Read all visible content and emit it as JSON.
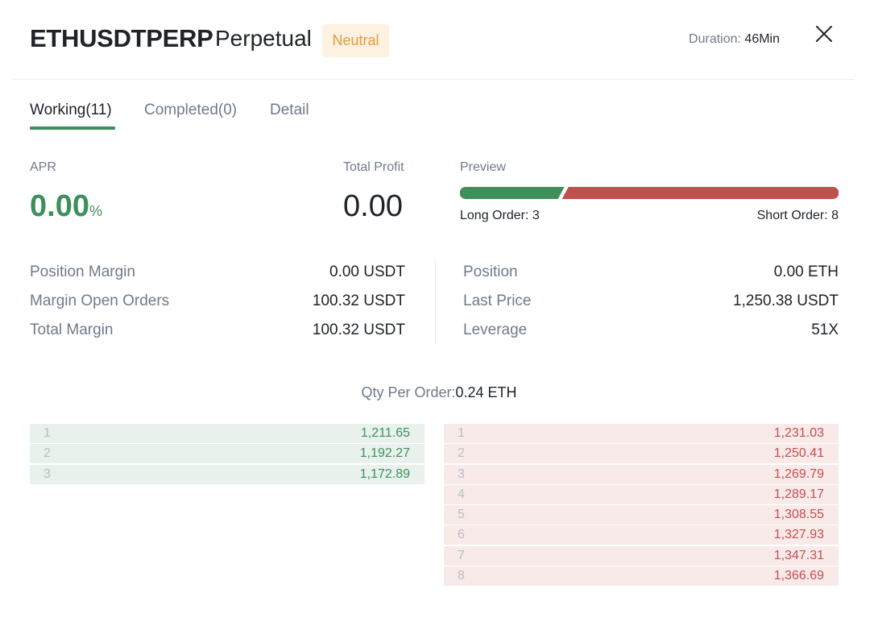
{
  "header": {
    "symbol": "ETHUSDTPERP",
    "type": "Perpetual",
    "mode": "Neutral",
    "duration_label": "Duration:",
    "duration_value": "46Min",
    "close_icon": "close-icon"
  },
  "tabs": [
    {
      "label": "Working(11)",
      "active": true
    },
    {
      "label": "Completed(0)",
      "active": false
    },
    {
      "label": "Detail",
      "active": false
    }
  ],
  "summary": {
    "apr_label": "APR",
    "apr_value": "0.00",
    "apr_unit": "%",
    "profit_label": "Total Profit",
    "profit_value": "0.00",
    "preview_label": "Preview",
    "long_label": "Long Order: 3",
    "short_label": "Short Order: 8",
    "long_count": 3,
    "short_count": 8,
    "long_color": "#3e8f5c",
    "short_color": "#c0504d"
  },
  "stats_left": [
    {
      "label": "Position Margin",
      "value": "0.00 USDT"
    },
    {
      "label": "Margin Open Orders",
      "value": "100.32 USDT"
    },
    {
      "label": "Total Margin",
      "value": "100.32 USDT"
    }
  ],
  "stats_right": [
    {
      "label": "Position",
      "value": "0.00 ETH"
    },
    {
      "label": "Last Price",
      "value": "1,250.38 USDT"
    },
    {
      "label": "Leverage",
      "value": "51X"
    }
  ],
  "qty": {
    "label": "Qty Per Order:",
    "value": "0.24 ETH"
  },
  "long_orders": [
    {
      "idx": "1",
      "price": "1,211.65"
    },
    {
      "idx": "2",
      "price": "1,192.27"
    },
    {
      "idx": "3",
      "price": "1,172.89"
    }
  ],
  "short_orders": [
    {
      "idx": "1",
      "price": "1,231.03"
    },
    {
      "idx": "2",
      "price": "1,250.41"
    },
    {
      "idx": "3",
      "price": "1,269.79"
    },
    {
      "idx": "4",
      "price": "1,289.17"
    },
    {
      "idx": "5",
      "price": "1,308.55"
    },
    {
      "idx": "6",
      "price": "1,327.93"
    },
    {
      "idx": "7",
      "price": "1,347.31"
    },
    {
      "idx": "8",
      "price": "1,366.69"
    }
  ]
}
